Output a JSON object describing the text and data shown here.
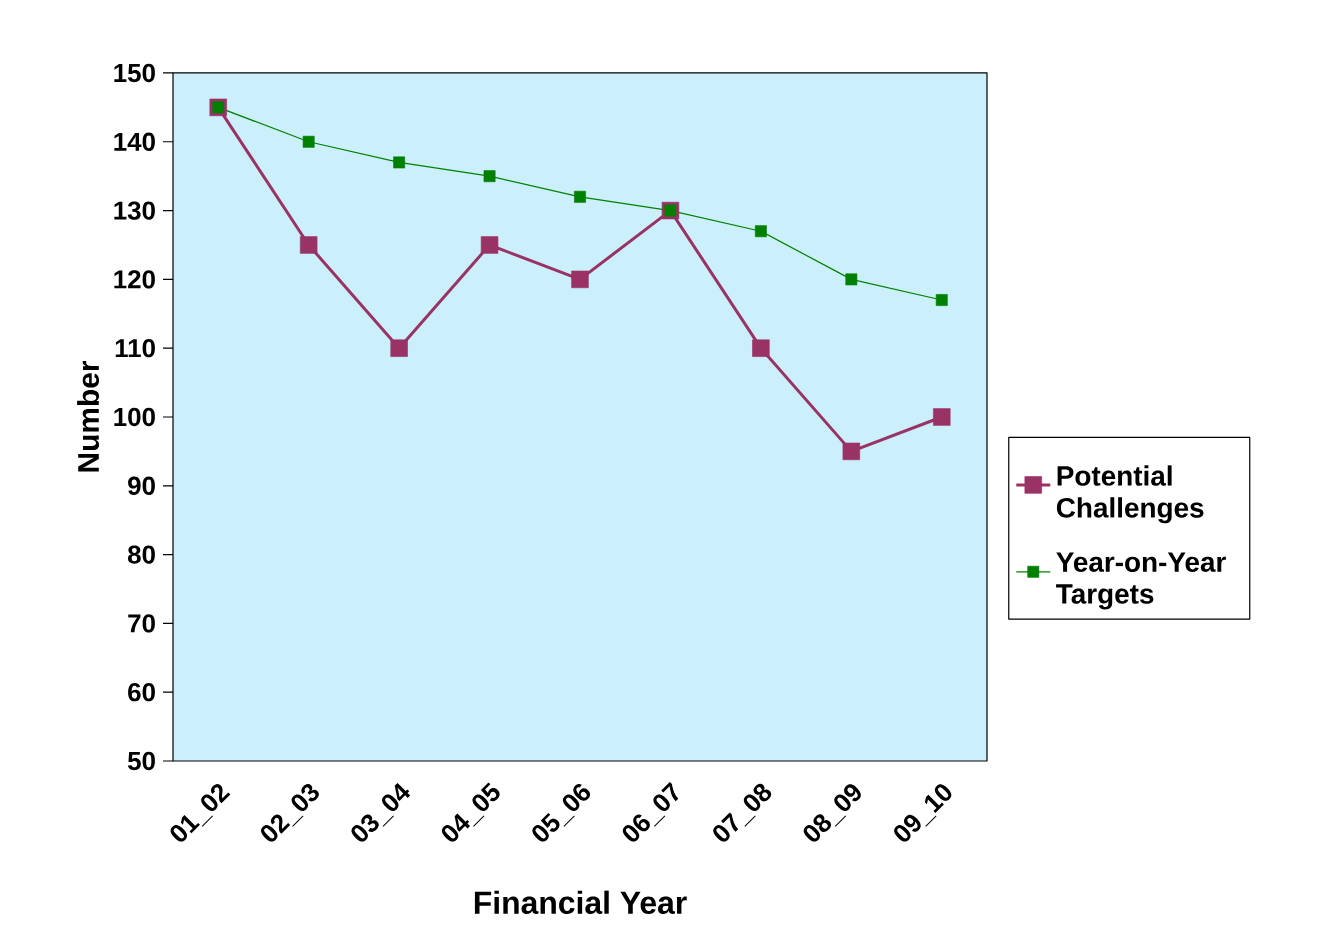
{
  "chart_data": {
    "type": "line",
    "xlabel": "Financial Year",
    "ylabel": "Number",
    "categories": [
      "01_02",
      "02_03",
      "03_04",
      "04_05",
      "05_06",
      "06_07",
      "07_08",
      "08_09",
      "09_10"
    ],
    "series": [
      {
        "name": "Potential Challenges",
        "color": "#993366",
        "values": [
          145,
          125,
          110,
          125,
          120,
          130,
          110,
          95,
          100
        ]
      },
      {
        "name": "Year-on-Year Targets",
        "color": "#008000",
        "values": [
          145,
          140,
          137,
          135,
          132,
          130,
          127,
          120,
          117
        ]
      }
    ],
    "ylim": [
      50,
      150
    ],
    "yticks": [
      50,
      60,
      70,
      80,
      90,
      100,
      110,
      120,
      130,
      140,
      150
    ],
    "grid": false,
    "legend": "right",
    "marker": "square",
    "line_style": "solid"
  }
}
